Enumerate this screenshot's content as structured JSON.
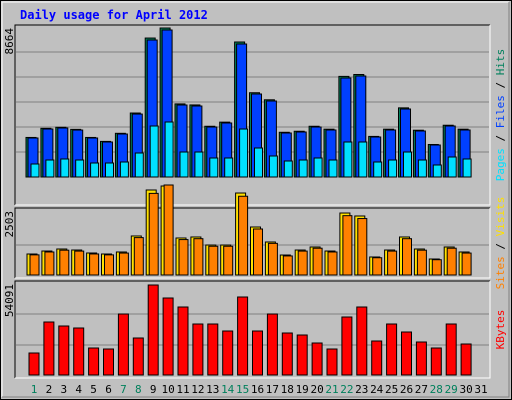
{
  "title": "Daily usage for April 2012",
  "legend_separator": " / ",
  "chart_data": [
    {
      "type": "bar",
      "ylim": [
        0,
        8664
      ],
      "yticks": [
        8664
      ],
      "series": [
        {
          "name": "Pages",
          "color": "#00e0ff",
          "values": [
            756,
            988,
            1047,
            988,
            814,
            814,
            872,
            1395,
            2965,
            3198,
            1453,
            1453,
            1105,
            1105,
            2790,
            1686,
            1221,
            930,
            988,
            1105,
            988,
            2035,
            2035,
            872,
            988,
            1453,
            988,
            698,
            1163,
            1047,
            null
          ]
        },
        {
          "name": "Files",
          "color": "#0040ff",
          "values": [
            2268,
            2790,
            2850,
            2730,
            2268,
            2035,
            2500,
            3660,
            7965,
            8548,
            4186,
            4128,
            2907,
            3140,
            7733,
            4826,
            4419,
            2558,
            2617,
            2907,
            2733,
            5756,
            5873,
            2326,
            2733,
            3954,
            2675,
            1860,
            2965,
            2733,
            null
          ]
        },
        {
          "name": "Hits",
          "color": "#00805c",
          "values": [
            2300,
            2830,
            2890,
            2770,
            2300,
            2070,
            2540,
            3720,
            8080,
            8664,
            4250,
            4190,
            2950,
            3190,
            7850,
            4900,
            4490,
            2600,
            2660,
            2950,
            2780,
            5850,
            5960,
            2360,
            2780,
            4020,
            2720,
            1890,
            3010,
            2780,
            null
          ]
        }
      ]
    },
    {
      "type": "bar",
      "ylim": [
        0,
        2503
      ],
      "yticks": [
        2503
      ],
      "series": [
        {
          "name": "Sites",
          "color": "#ff8000",
          "values": [
            560,
            640,
            690,
            665,
            585,
            560,
            610,
            1040,
            2270,
            2503,
            985,
            1010,
            800,
            800,
            2190,
            1280,
            880,
            530,
            665,
            745,
            640,
            1650,
            1570,
            480,
            665,
            1010,
            690,
            425,
            745,
            610,
            null
          ]
        },
        {
          "name": "Visits",
          "color": "#ffe000",
          "values": [
            584,
            667,
            723,
            695,
            612,
            584,
            640,
            1085,
            2364,
            2475,
            1029,
            1057,
            834,
            834,
            2280,
            1335,
            918,
            556,
            695,
            779,
            667,
            1724,
            1641,
            501,
            695,
            1057,
            723,
            445,
            779,
            640,
            null
          ]
        }
      ]
    },
    {
      "type": "bar",
      "ylim": [
        0,
        54091
      ],
      "yticks": [
        54091
      ],
      "categories": [
        "1",
        "2",
        "3",
        "4",
        "5",
        "6",
        "7",
        "8",
        "9",
        "10",
        "11",
        "12",
        "13",
        "14",
        "15",
        "16",
        "17",
        "18",
        "19",
        "20",
        "21",
        "22",
        "23",
        "24",
        "25",
        "26",
        "27",
        "28",
        "29",
        "30",
        "31"
      ],
      "category_colors": [
        "#00805c",
        "#000000",
        "#000000",
        "#000000",
        "#000000",
        "#000000",
        "#00805c",
        "#00805c",
        "#000000",
        "#000000",
        "#000000",
        "#000000",
        "#000000",
        "#00805c",
        "#00805c",
        "#000000",
        "#000000",
        "#000000",
        "#000000",
        "#000000",
        "#00805c",
        "#00805c",
        "#000000",
        "#000000",
        "#000000",
        "#000000",
        "#000000",
        "#00805c",
        "#00805c",
        "#000000",
        "#000000"
      ],
      "series": [
        {
          "name": "KBytes",
          "color": "#ff0000",
          "values": [
            13222,
            31854,
            29450,
            28248,
            16227,
            15626,
            36662,
            22237,
            54091,
            46278,
            40868,
            30652,
            30652,
            26445,
            46879,
            26445,
            36662,
            25243,
            24040,
            19232,
            15626,
            34859,
            40868,
            20434,
            30652,
            25844,
            19833,
            16227,
            30652,
            18631,
            null
          ]
        }
      ]
    }
  ]
}
